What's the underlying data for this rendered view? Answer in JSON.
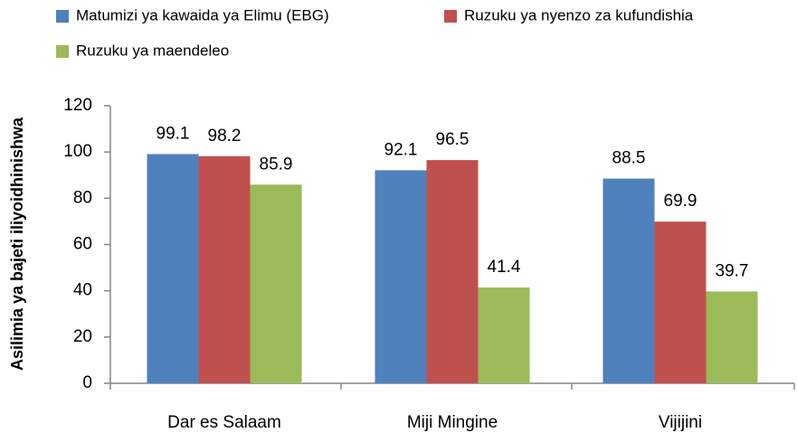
{
  "chart_data": {
    "type": "bar",
    "y_label": "Asilimia ya bajeti iliyoidhinishwa",
    "categories": [
      "Dar es Salaam",
      "Miji Mingine",
      "Vijijini"
    ],
    "series": [
      {
        "name": "Matumizi ya kawaida ya Elimu (EBG)",
        "color": "#4f81bd",
        "values": [
          99.1,
          92.1,
          88.5
        ]
      },
      {
        "name": "Ruzuku ya nyenzo za kufundishia",
        "color": "#c0504d",
        "values": [
          98.2,
          96.5,
          69.9
        ]
      },
      {
        "name": "Ruzuku ya maendeleo",
        "color": "#9bbb59",
        "values": [
          85.9,
          41.4,
          39.7
        ]
      }
    ],
    "ylim": [
      0,
      120
    ],
    "yticks": [
      0,
      20,
      40,
      60,
      80,
      100,
      120
    ],
    "grid": false,
    "legend": "top"
  }
}
